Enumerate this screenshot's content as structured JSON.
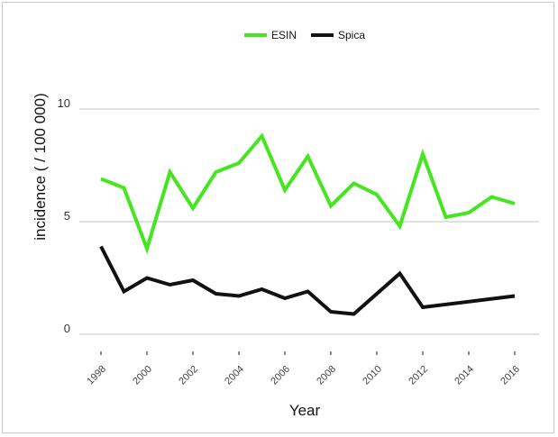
{
  "chart_data": {
    "type": "line",
    "xlabel": "Year",
    "ylabel": "incidence ( / 100 000)",
    "x": [
      1998,
      1999,
      2000,
      2001,
      2002,
      2003,
      2004,
      2005,
      2006,
      2007,
      2008,
      2009,
      2010,
      2011,
      2012,
      2013,
      2014,
      2015,
      2016
    ],
    "xticks": [
      "1998",
      "2000",
      "2002",
      "2004",
      "2006",
      "2008",
      "2010",
      "2012",
      "2014",
      "2016"
    ],
    "yticks": [
      "0",
      "5",
      "10"
    ],
    "ylim": [
      0,
      10
    ],
    "grid": "horizontal",
    "legend_position": "top-center",
    "series": [
      {
        "name": "ESIN",
        "color": "#44e61e",
        "values": [
          6.9,
          6.5,
          3.8,
          7.2,
          5.6,
          7.2,
          7.6,
          8.8,
          6.4,
          7.9,
          5.7,
          6.7,
          6.2,
          4.8,
          8.0,
          5.2,
          5.4,
          6.1,
          5.8
        ]
      },
      {
        "name": "Spica",
        "color": "#111111",
        "values": [
          3.9,
          1.9,
          2.5,
          2.2,
          2.4,
          1.8,
          1.7,
          2.0,
          1.6,
          1.9,
          1.0,
          0.9,
          null,
          2.7,
          1.2,
          null,
          null,
          null,
          1.7
        ]
      }
    ]
  }
}
